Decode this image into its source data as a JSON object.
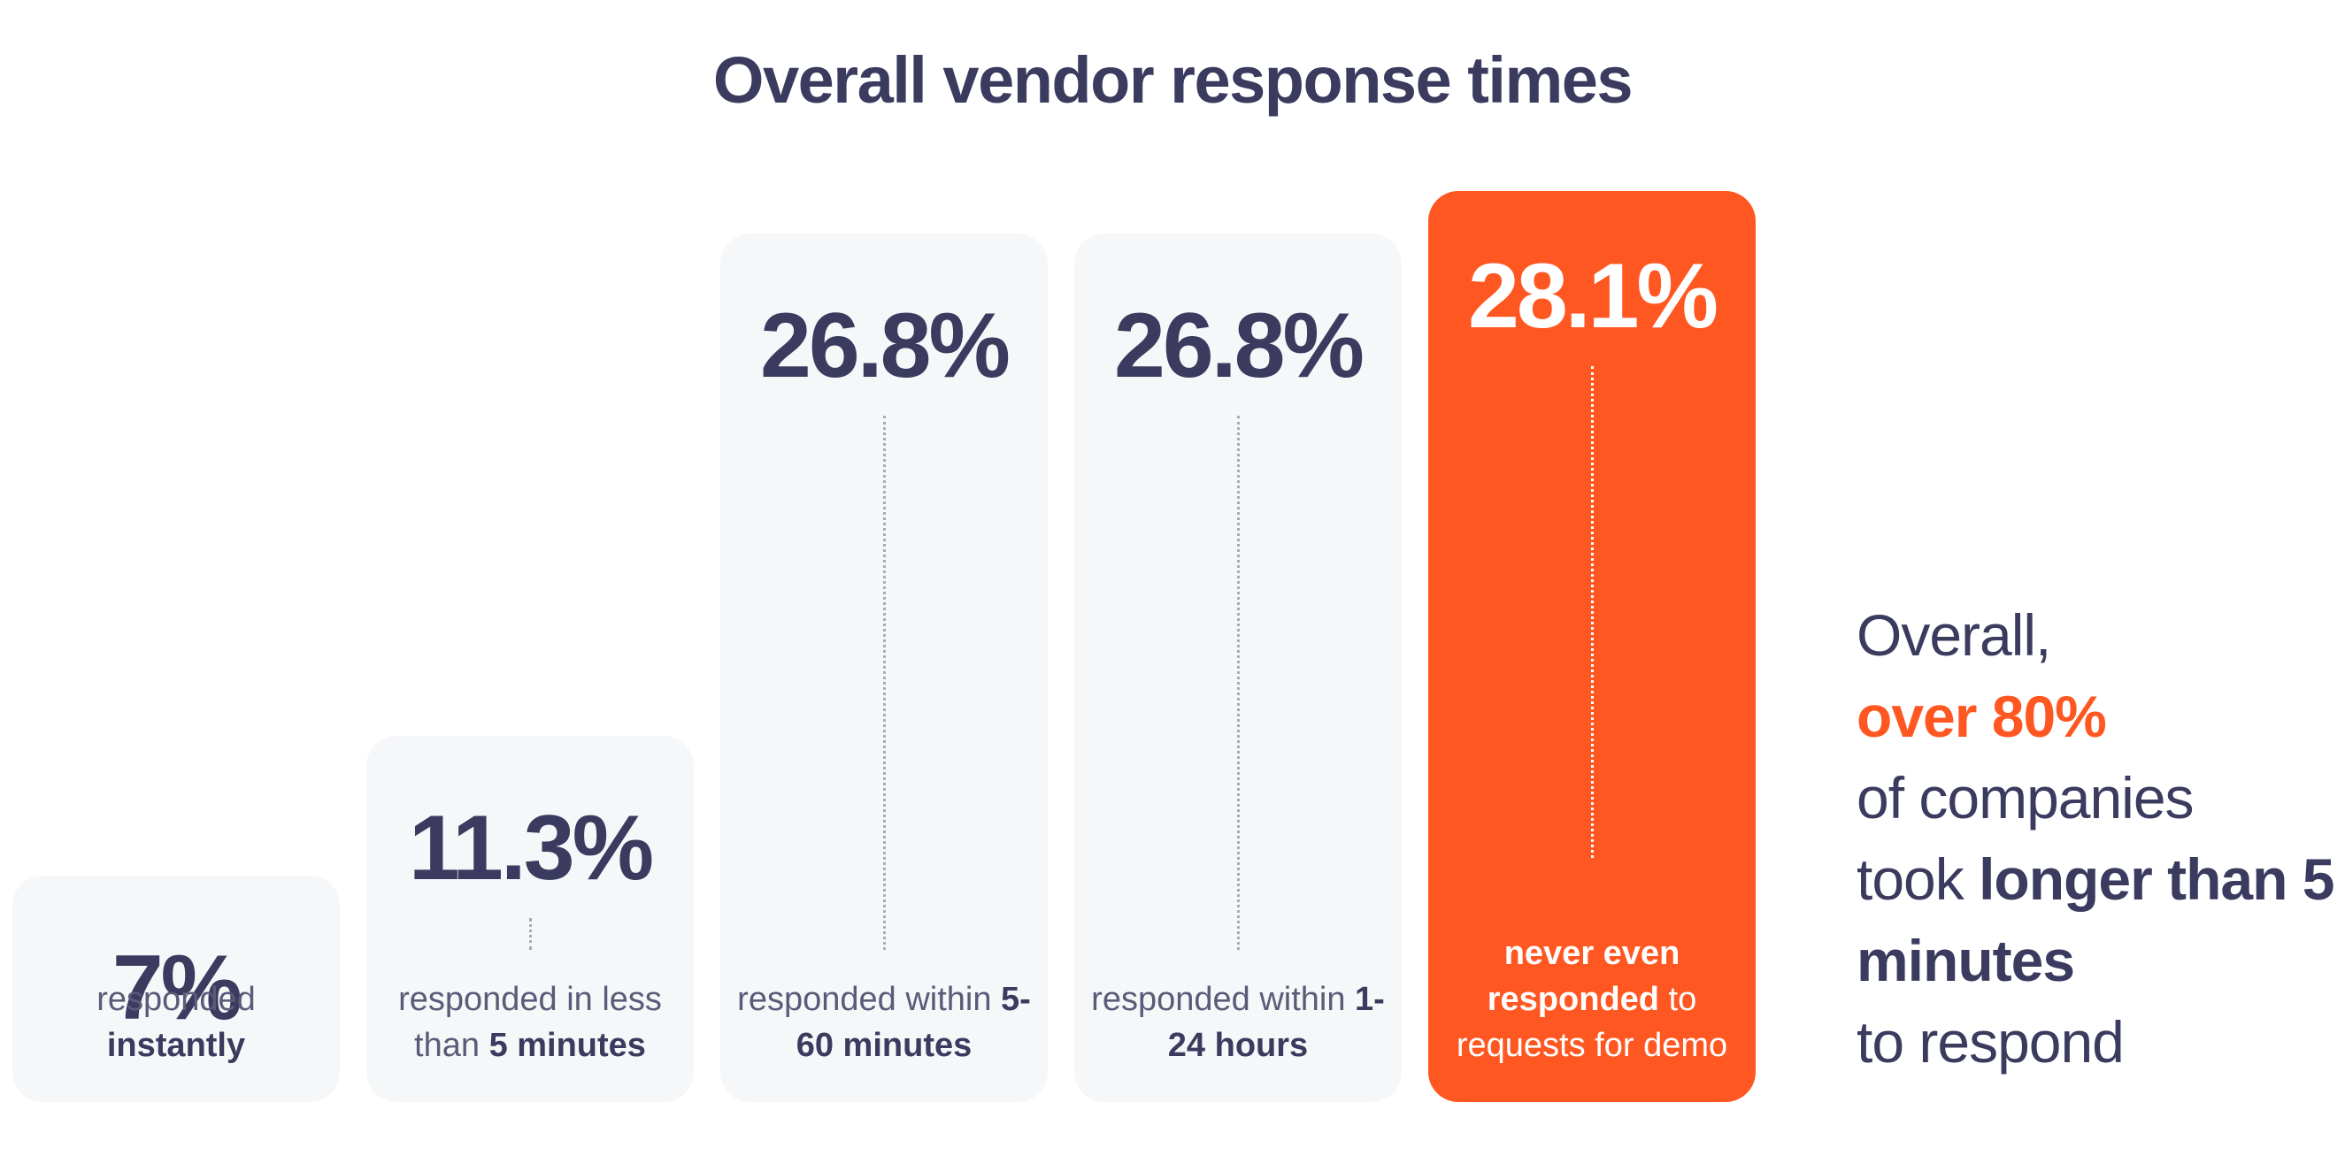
{
  "chart_data": {
    "type": "bar",
    "title": "Overall vendor response times",
    "ylim": [
      0,
      30
    ],
    "grid": false,
    "legend": "none",
    "bars": [
      {
        "value": 7.0,
        "value_label": "7%",
        "label_pre": "responded ",
        "label_bold": "instantly",
        "label_post": "",
        "highlight": false
      },
      {
        "value": 11.3,
        "value_label": "11.3%",
        "label_pre": "responded in less than ",
        "label_bold": "5 minutes",
        "label_post": "",
        "highlight": false
      },
      {
        "value": 26.8,
        "value_label": "26.8%",
        "label_pre": "responded within ",
        "label_bold": "5-60 minutes",
        "label_post": "",
        "highlight": false
      },
      {
        "value": 26.8,
        "value_label": "26.8%",
        "label_pre": "responded within ",
        "label_bold": "1-24 hours",
        "label_post": "",
        "highlight": false
      },
      {
        "value": 28.1,
        "value_label": "28.1%",
        "label_pre": "",
        "label_bold": "never even responded",
        "label_post": " to requests for demo",
        "highlight": true
      }
    ]
  },
  "summary": {
    "line1": "Overall,",
    "highlight": "over 80%",
    "line3": "of companies",
    "line4_pre": "took ",
    "bold": "longer than 5 minutes",
    "line5": "to respond"
  },
  "colors": {
    "text": "#3a3b5e",
    "accent": "#ff5722",
    "bar_bg": "#f6f7f9",
    "white": "#ffffff",
    "connector": "#a9aab8"
  }
}
